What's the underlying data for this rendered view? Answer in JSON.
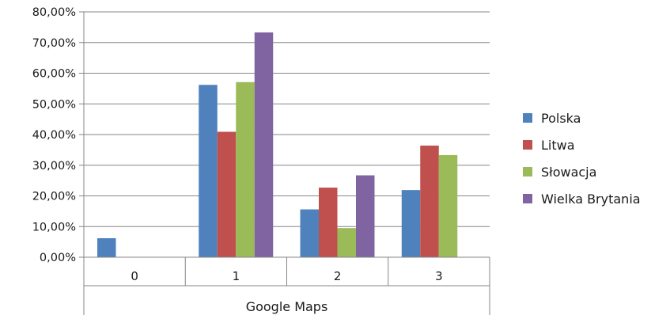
{
  "chart_data": {
    "type": "bar",
    "title": "",
    "xlabel": "Google Maps",
    "ylabel": "",
    "categories": [
      "0",
      "1",
      "2",
      "3"
    ],
    "ylim": [
      0,
      80
    ],
    "ytick_labels": [
      "0,00%",
      "10,00%",
      "20,00%",
      "30,00%",
      "40,00%",
      "50,00%",
      "60,00%",
      "70,00%",
      "80,00%"
    ],
    "grid": true,
    "legend_position": "right",
    "series": [
      {
        "name": "Polska",
        "color": "#4f81bd",
        "values": [
          6.2,
          56.2,
          15.6,
          21.9
        ]
      },
      {
        "name": "Litwa",
        "color": "#c0504d",
        "values": [
          0,
          40.9,
          22.7,
          36.4
        ]
      },
      {
        "name": "Słowacja",
        "color": "#9bbb59",
        "values": [
          0,
          57.1,
          9.5,
          33.3
        ]
      },
      {
        "name": "Wielka Brytania",
        "color": "#8064a2",
        "values": [
          0,
          73.3,
          26.7,
          0
        ]
      }
    ]
  }
}
